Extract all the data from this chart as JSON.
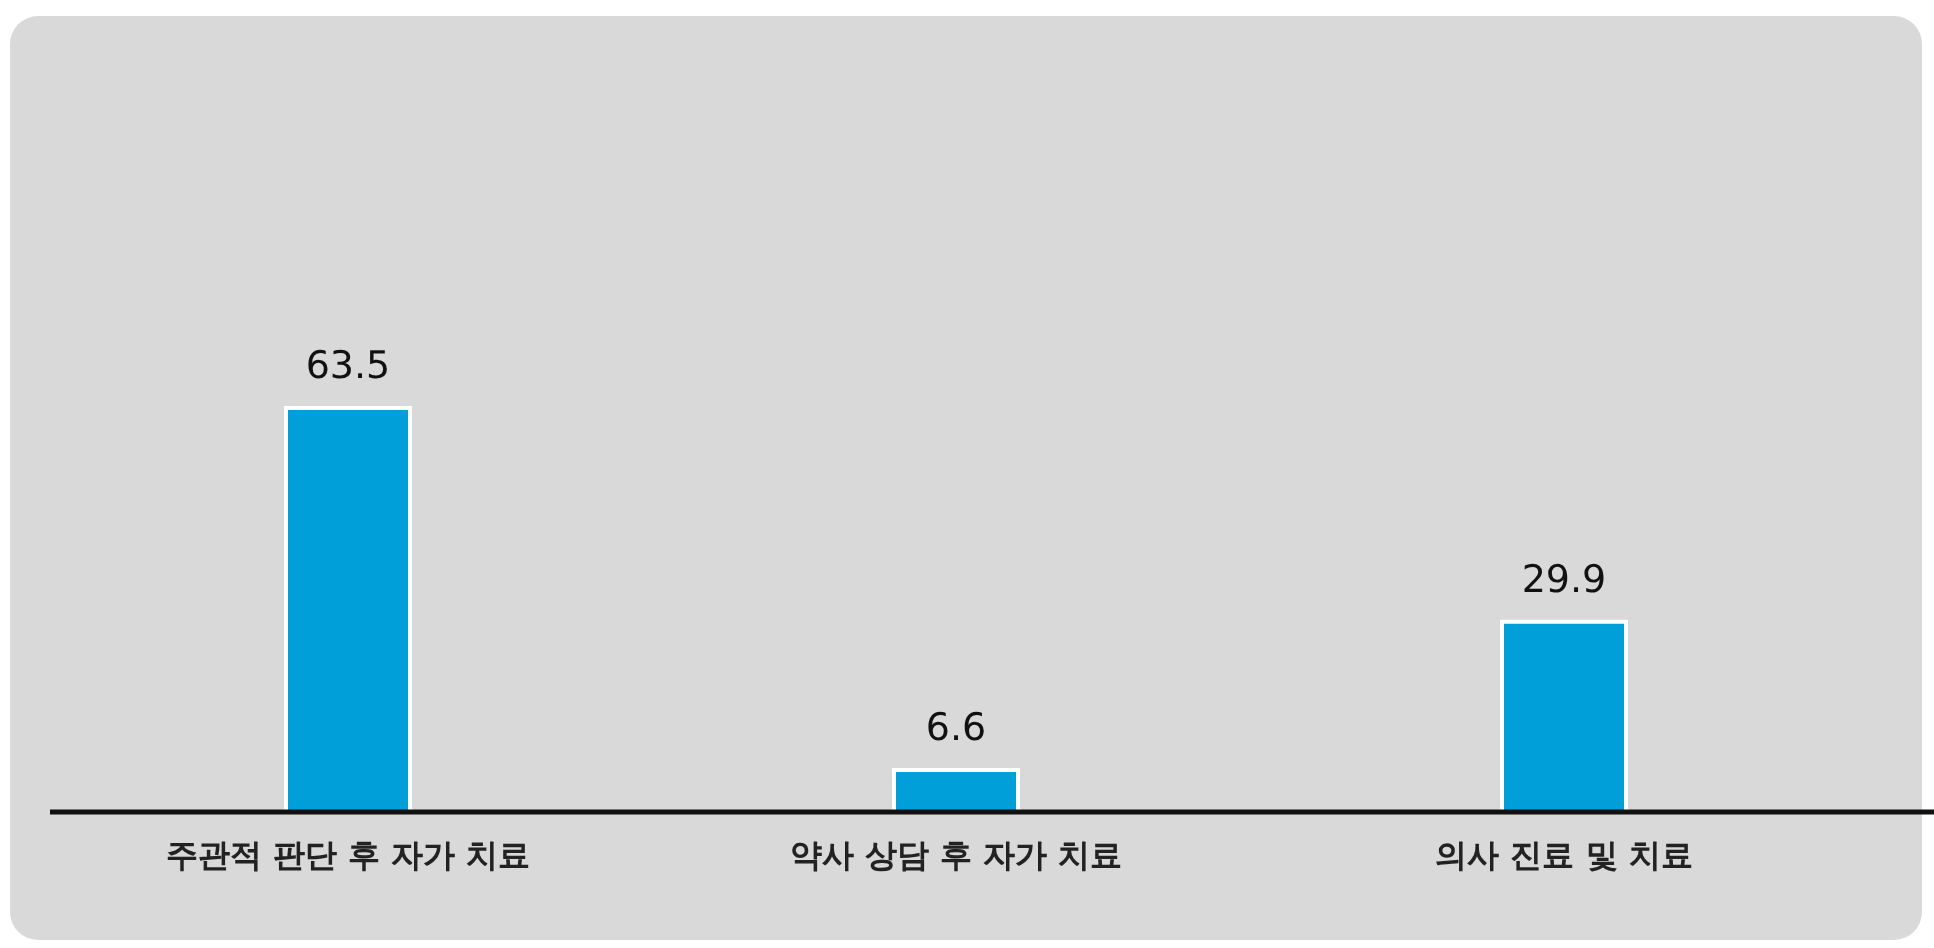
{
  "chart_data": {
    "type": "bar",
    "categories": [
      "주관적 판단 후 자가 치료",
      "약사 상담 후 자가 치료",
      "의사 진료 및 치료"
    ],
    "values": [
      63.5,
      6.6,
      29.9
    ],
    "color": "#009fd9",
    "data_labels": true
  }
}
